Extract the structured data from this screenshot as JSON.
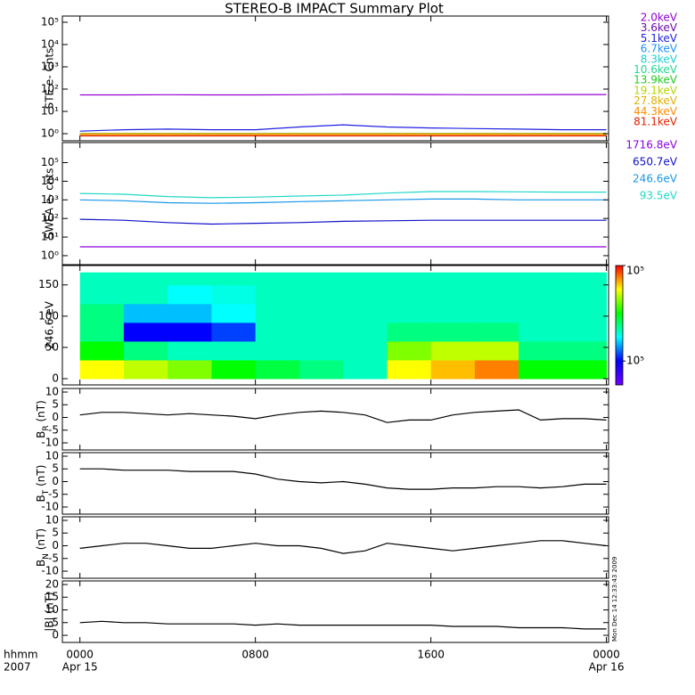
{
  "title": "STEREO-B IMPACT Summary Plot",
  "footer_note": "Mon Dec 14 12:33:43 2009",
  "x_axis": {
    "xlim": [
      -0.8,
      24.1
    ],
    "xticks": [
      {
        "value": 0,
        "label": "0000"
      },
      {
        "value": 8,
        "label": "0800"
      },
      {
        "value": 16,
        "label": "1600"
      },
      {
        "value": 24,
        "label": "0000"
      }
    ],
    "date_labels": [
      "Apr 15",
      "Apr 16"
    ],
    "unit_label": "hhmm",
    "year_label": "2007"
  },
  "chart_data": [
    {
      "type": "line",
      "log": true,
      "ylabel": "STE e- Cnts",
      "ylim": [
        0.48,
        190000
      ],
      "yticks": [
        {
          "value": 1,
          "label": "10⁰"
        },
        {
          "value": 10,
          "label": "10¹"
        },
        {
          "value": 100,
          "label": "10²"
        },
        {
          "value": 1000,
          "label": "10³"
        },
        {
          "value": 10000,
          "label": "10⁴"
        },
        {
          "value": 100000,
          "label": "10⁵"
        }
      ],
      "x": [
        0,
        2,
        4,
        6,
        8,
        10,
        12,
        14,
        16,
        18,
        20,
        22,
        24
      ],
      "series": [
        {
          "name": "2.0keV",
          "color": "#9400d3",
          "values": [
            55,
            55,
            56,
            55,
            55,
            56,
            58,
            58,
            57,
            56,
            56,
            57,
            57
          ]
        },
        {
          "name": "3.6keV",
          "color": "#6a0dad",
          "values": [
            1,
            1,
            1,
            1,
            1,
            1,
            1,
            1,
            1,
            1,
            1,
            1,
            1
          ]
        },
        {
          "name": "5.1keV",
          "color": "#2020e0",
          "values": [
            1.3,
            1.5,
            1.6,
            1.5,
            1.5,
            2,
            2.5,
            2,
            1.8,
            1.7,
            1.6,
            1.5,
            1.5
          ]
        },
        {
          "name": "6.7keV",
          "color": "#1e90ff",
          "values": [
            1,
            1,
            1,
            1,
            1,
            1,
            1,
            1,
            1,
            1,
            1,
            1,
            1
          ]
        },
        {
          "name": "8.3keV",
          "color": "#20d0d0",
          "values": [
            1,
            1,
            1,
            1,
            1,
            1,
            1,
            1,
            1,
            1,
            1,
            1,
            1
          ]
        },
        {
          "name": "10.6keV",
          "color": "#20d890",
          "values": [
            1,
            1,
            1,
            1,
            1,
            1,
            1,
            1,
            1,
            1,
            1,
            1,
            1
          ]
        },
        {
          "name": "13.9keV",
          "color": "#22cc22",
          "values": [
            1,
            1,
            1,
            1,
            1,
            1,
            1,
            1,
            1,
            1,
            1,
            1,
            1
          ]
        },
        {
          "name": "19.1keV",
          "color": "#b8d400",
          "values": [
            1,
            1,
            1,
            1,
            1,
            1,
            1,
            1,
            1,
            1,
            1,
            1,
            1
          ]
        },
        {
          "name": "27.8keV",
          "color": "#e0b000",
          "values": [
            1,
            1,
            1,
            1,
            1,
            1,
            1,
            1,
            1,
            1,
            1,
            1,
            1
          ]
        },
        {
          "name": "44.3keV",
          "color": "#ff8c00",
          "values": [
            0.9,
            0.9,
            0.9,
            0.9,
            0.9,
            0.9,
            0.9,
            0.9,
            0.9,
            0.9,
            0.9,
            0.9,
            0.9
          ]
        },
        {
          "name": "81.1keV",
          "color": "#e02000",
          "values": [
            0.8,
            0.8,
            0.8,
            0.8,
            0.8,
            0.8,
            0.8,
            0.8,
            0.8,
            0.8,
            0.8,
            0.8,
            0.8
          ]
        }
      ]
    },
    {
      "type": "line",
      "log": true,
      "ylabel": "SWEA e- cnts",
      "ylim": [
        0.33,
        1200000
      ],
      "yticks": [
        {
          "value": 1,
          "label": "10⁰"
        },
        {
          "value": 10,
          "label": "10¹"
        },
        {
          "value": 100,
          "label": "10²"
        },
        {
          "value": 1000,
          "label": "10³"
        },
        {
          "value": 10000,
          "label": "10⁴"
        },
        {
          "value": 100000,
          "label": "10⁵"
        }
      ],
      "x": [
        0,
        2,
        4,
        6,
        8,
        10,
        12,
        14,
        16,
        18,
        20,
        22,
        24
      ],
      "series": [
        {
          "name": "1716.8eV",
          "color": "#8a00e0",
          "values": [
            3,
            3,
            3,
            3,
            3,
            3,
            3,
            3,
            3,
            3,
            3,
            3,
            3
          ]
        },
        {
          "name": "650.7eV",
          "color": "#1010c8",
          "values": [
            90,
            80,
            60,
            50,
            55,
            60,
            70,
            75,
            80,
            80,
            80,
            80,
            80
          ]
        },
        {
          "name": "246.6eV",
          "color": "#1896e8",
          "values": [
            1000,
            900,
            700,
            650,
            700,
            800,
            900,
            1000,
            1100,
            1100,
            1000,
            1000,
            1000
          ]
        },
        {
          "name": "93.5eV",
          "color": "#20d8c8",
          "values": [
            2200,
            2000,
            1500,
            1300,
            1400,
            1600,
            1800,
            2300,
            2800,
            2800,
            2700,
            2600,
            2600
          ]
        }
      ]
    },
    {
      "type": "heatmap",
      "ylabel": "246.6 eV",
      "ylim": [
        -10,
        181
      ],
      "yticks": [
        0,
        50,
        100,
        150
      ],
      "x_edges": [
        0,
        2,
        4,
        6,
        8,
        10,
        12,
        14,
        16,
        18,
        20,
        22,
        24
      ],
      "y_edges": [
        0,
        30,
        60,
        90,
        120,
        150,
        170
      ],
      "z": [
        [
          0.8,
          0.75,
          0.7,
          0.6,
          0.55,
          0.5,
          0.45,
          0.8,
          0.85,
          0.9,
          0.6,
          0.6
        ],
        [
          0.6,
          0.5,
          0.45,
          0.45,
          0.45,
          0.45,
          0.45,
          0.7,
          0.75,
          0.75,
          0.5,
          0.5
        ],
        [
          0.5,
          0.2,
          0.2,
          0.25,
          0.45,
          0.45,
          0.45,
          0.5,
          0.5,
          0.5,
          0.45,
          0.45
        ],
        [
          0.5,
          0.35,
          0.35,
          0.4,
          0.45,
          0.45,
          0.45,
          0.45,
          0.45,
          0.45,
          0.45,
          0.45
        ],
        [
          0.45,
          0.45,
          0.4,
          0.42,
          0.45,
          0.45,
          0.45,
          0.45,
          0.45,
          0.45,
          0.45,
          0.45
        ],
        [
          0.45,
          0.45,
          0.45,
          0.45,
          0.45,
          0.45,
          0.45,
          0.45,
          0.45,
          0.45,
          0.45,
          0.45
        ]
      ],
      "zlim": [
        0,
        1
      ],
      "zticks": [
        {
          "value": 1,
          "label": "10⁵"
        },
        {
          "value": 0.2,
          "label": "10⁵"
        }
      ],
      "colormap": [
        "#7000ff",
        "#0000ff",
        "#00ffff",
        "#00ff00",
        "#ffff00",
        "#ff0000"
      ]
    },
    {
      "type": "line",
      "log": false,
      "ylabel": [
        "B",
        "R",
        " (nT)"
      ],
      "ylim": [
        -12.8,
        11.4
      ],
      "yticks": [
        -10,
        -5,
        0,
        5,
        10
      ],
      "x": [
        0,
        1,
        2,
        3,
        4,
        5,
        6,
        7,
        8,
        9,
        10,
        11,
        12,
        13,
        14,
        15,
        16,
        17,
        18,
        19,
        20,
        21,
        22,
        23,
        24
      ],
      "series": [
        {
          "color": "#000000",
          "values": [
            1,
            2,
            2,
            1.5,
            1,
            1.5,
            1,
            0.5,
            -0.5,
            1,
            2,
            2.5,
            2,
            1,
            -2,
            -1,
            -1,
            1,
            2,
            2.5,
            3,
            -1,
            -0.5,
            -0.5,
            -1
          ]
        }
      ]
    },
    {
      "type": "line",
      "log": false,
      "ylabel": [
        "B",
        "T",
        " (nT)"
      ],
      "ylim": [
        -12.8,
        11.4
      ],
      "yticks": [
        -10,
        -5,
        0,
        5,
        10
      ],
      "x": [
        0,
        1,
        2,
        3,
        4,
        5,
        6,
        7,
        8,
        9,
        10,
        11,
        12,
        13,
        14,
        15,
        16,
        17,
        18,
        19,
        20,
        21,
        22,
        23,
        24
      ],
      "series": [
        {
          "color": "#000000",
          "values": [
            5,
            5,
            4.5,
            4.5,
            4.5,
            4,
            4,
            4,
            3,
            1,
            0,
            -0.5,
            0,
            -1,
            -2.5,
            -3,
            -3,
            -2.5,
            -2.5,
            -2,
            -2,
            -2.5,
            -2,
            -1,
            -1
          ]
        }
      ]
    },
    {
      "type": "line",
      "log": false,
      "ylabel": [
        "B",
        "N",
        " (nT)"
      ],
      "ylim": [
        -12.8,
        11.4
      ],
      "yticks": [
        -10,
        -5,
        0,
        5,
        10
      ],
      "x": [
        0,
        1,
        2,
        3,
        4,
        5,
        6,
        7,
        8,
        9,
        10,
        11,
        12,
        13,
        14,
        15,
        16,
        17,
        18,
        19,
        20,
        21,
        22,
        23,
        24
      ],
      "series": [
        {
          "color": "#000000",
          "values": [
            -1,
            0,
            1,
            1,
            0,
            -1,
            -1,
            0,
            1,
            0,
            0,
            -1,
            -3,
            -2,
            1,
            0,
            -1,
            -2,
            -1,
            0,
            1,
            2,
            2,
            1,
            0
          ]
        }
      ]
    },
    {
      "type": "line",
      "log": false,
      "ylabel": "|B| (nT)",
      "ylim": [
        -2.8,
        21.4
      ],
      "yticks": [
        0,
        5,
        10,
        15,
        20
      ],
      "x": [
        0,
        1,
        2,
        3,
        4,
        5,
        6,
        7,
        8,
        9,
        10,
        11,
        12,
        13,
        14,
        15,
        16,
        17,
        18,
        19,
        20,
        21,
        22,
        23,
        24
      ],
      "series": [
        {
          "color": "#000000",
          "values": [
            5,
            5.5,
            5,
            5,
            4.5,
            4.5,
            4.5,
            4.5,
            4,
            4.5,
            4,
            4,
            4,
            4,
            4,
            4,
            4,
            3.5,
            3.5,
            3.5,
            3,
            3,
            3,
            2.5,
            2.5
          ]
        }
      ]
    }
  ]
}
